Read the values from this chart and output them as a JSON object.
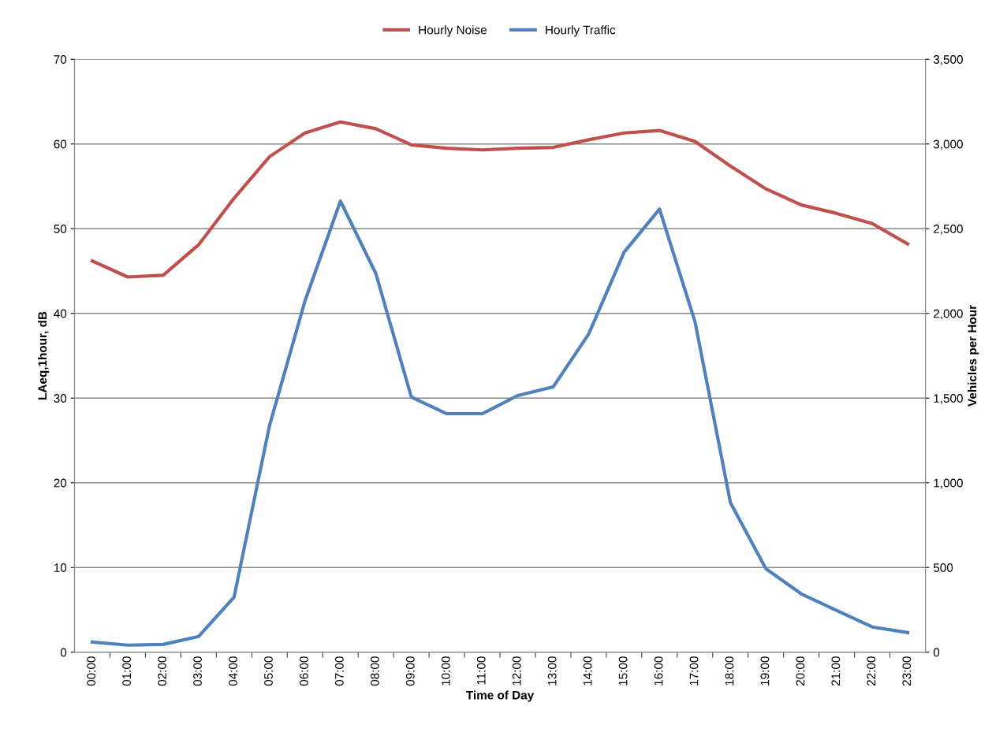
{
  "chart_data": {
    "type": "line",
    "xlabel": "Time of Day",
    "ylabel": "LAeq,1hour, dB",
    "y2label": "Vehicles per Hour",
    "categories": [
      "00:00",
      "01:00",
      "02:00",
      "03:00",
      "04:00",
      "05:00",
      "06:00",
      "07:00",
      "08:00",
      "09:00",
      "10:00",
      "11:00",
      "12:00",
      "13:00",
      "14:00",
      "15:00",
      "16:00",
      "17:00",
      "18:00",
      "19:00",
      "20:00",
      "21:00",
      "22:00",
      "23:00"
    ],
    "series": [
      {
        "name": "Hourly Noise",
        "color": "#c0504d",
        "values": [
          46.2,
          44.3,
          44.5,
          48.1,
          53.6,
          58.5,
          61.3,
          62.6,
          61.8,
          59.9,
          59.5,
          59.3,
          59.5,
          59.6,
          60.5,
          61.3,
          61.6,
          60.3,
          57.4,
          54.7,
          52.8,
          51.8,
          50.6,
          48.2
        ]
      },
      {
        "name": "Hourly Traffic",
        "color": "#4f81bd",
        "axis": "y2",
        "values": [
          60,
          42,
          46,
          93,
          325,
          1338,
          2073,
          2663,
          2235,
          1506,
          1408,
          1408,
          1515,
          1566,
          1877,
          2361,
          2616,
          1952,
          883,
          493,
          344,
          246,
          149,
          116
        ]
      }
    ],
    "ylim": [
      0,
      70
    ],
    "yticks": [
      0,
      10,
      20,
      30,
      40,
      50,
      60,
      70
    ],
    "y2lim": [
      0,
      3500
    ],
    "y2ticks": [
      {
        "value": 0,
        "label": "0"
      },
      {
        "value": 500,
        "label": "500"
      },
      {
        "value": 1000,
        "label": "1,000"
      },
      {
        "value": 1500,
        "label": "1,500"
      },
      {
        "value": 2000,
        "label": "2,000"
      },
      {
        "value": 2500,
        "label": "2,500"
      },
      {
        "value": 3000,
        "label": "3,000"
      },
      {
        "value": 3500,
        "label": "3,500"
      }
    ],
    "grid": "y",
    "legend": "top",
    "marker": "none",
    "line_style": "solid"
  }
}
